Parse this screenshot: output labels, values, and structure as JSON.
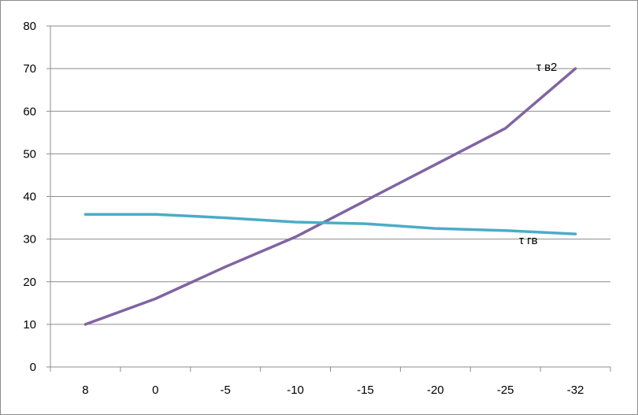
{
  "chart_data": {
    "type": "line",
    "title": "",
    "xlabel": "",
    "ylabel": "",
    "categories": [
      "8",
      "0",
      "-5",
      "-10",
      "-15",
      "-20",
      "-25",
      "-32"
    ],
    "ylim": [
      0,
      80
    ],
    "yticks": [
      "0",
      "10",
      "20",
      "30",
      "40",
      "50",
      "60",
      "70",
      "80"
    ],
    "grid": "horizontal",
    "legend": "none",
    "series": [
      {
        "name": "τ в2",
        "color": "#8064a2",
        "values": [
          10,
          16,
          23.5,
          30.5,
          39,
          47.5,
          56,
          70
        ]
      },
      {
        "name": "τ гв",
        "color": "#4bacc6",
        "values": [
          35.8,
          35.8,
          35,
          34,
          33.6,
          32.5,
          32,
          31.2
        ]
      }
    ]
  }
}
